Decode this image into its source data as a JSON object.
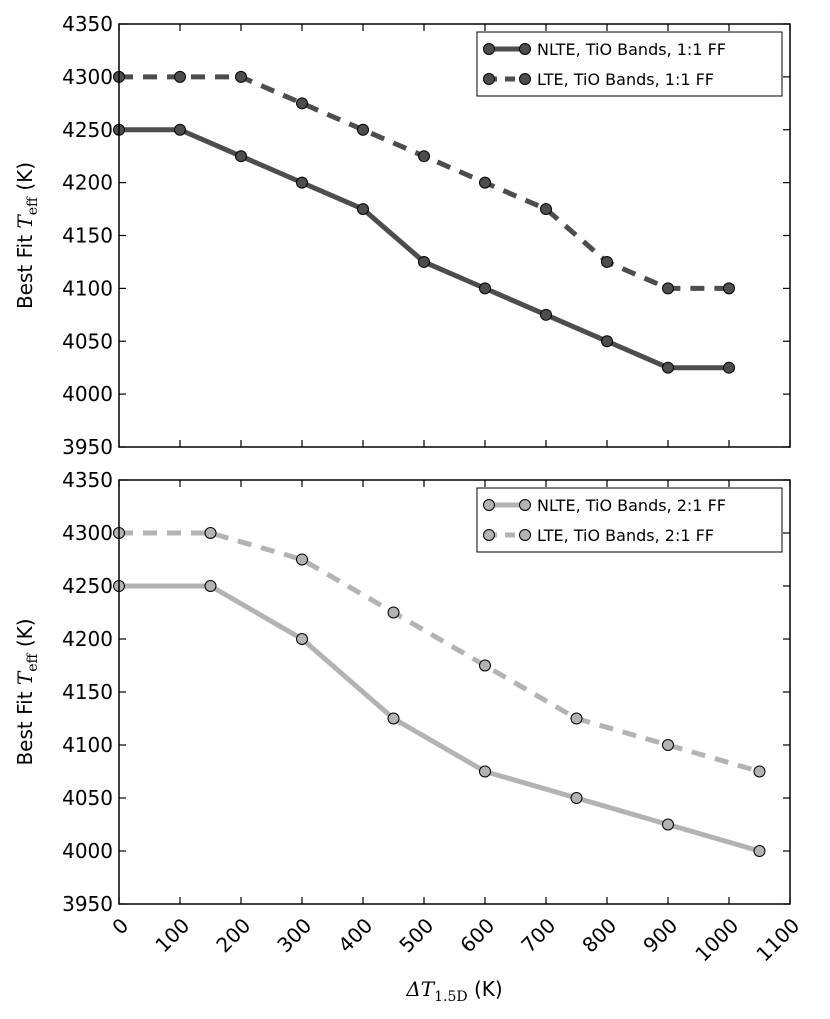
{
  "chart_data": [
    {
      "type": "line",
      "ylabel": "Best Fit T_eff (K)",
      "ylabel_prefix": "Best Fit ",
      "ylabel_sym": "T",
      "ylabel_sub": "eff",
      "ylabel_unit": " (K)",
      "xlim": [
        0,
        1100
      ],
      "ylim": [
        3950,
        4350
      ],
      "xticks": [
        0,
        100,
        200,
        300,
        400,
        500,
        600,
        700,
        800,
        900,
        1000,
        1100
      ],
      "yticks": [
        3950,
        4000,
        4050,
        4100,
        4150,
        4200,
        4250,
        4300,
        4350
      ],
      "xticklabels_visible": false,
      "legend_position": "top-right",
      "series": [
        {
          "name": "NLTE, TiO Bands, 1:1 FF",
          "style": "solid",
          "color": "#4d4d4d",
          "x": [
            0,
            100,
            200,
            300,
            400,
            500,
            600,
            700,
            800,
            900,
            1000
          ],
          "y": [
            4250,
            4250,
            4225,
            4200,
            4175,
            4125,
            4100,
            4075,
            4050,
            4025,
            4025
          ]
        },
        {
          "name": "LTE, TiO Bands, 1:1 FF",
          "style": "dashed",
          "color": "#4d4d4d",
          "x": [
            0,
            100,
            200,
            300,
            400,
            500,
            600,
            700,
            800,
            900,
            1000
          ],
          "y": [
            4300,
            4300,
            4300,
            4275,
            4250,
            4225,
            4200,
            4175,
            4125,
            4100,
            4100
          ]
        }
      ]
    },
    {
      "type": "line",
      "ylabel": "Best Fit T_eff (K)",
      "ylabel_prefix": "Best Fit ",
      "ylabel_sym": "T",
      "ylabel_sub": "eff",
      "ylabel_unit": " (K)",
      "xlabel": "ΔT_1.5D (K)",
      "xlabel_sym": "ΔT",
      "xlabel_sub": "1.5D",
      "xlabel_unit": " (K)",
      "xlim": [
        0,
        1100
      ],
      "ylim": [
        3950,
        4350
      ],
      "xticks": [
        0,
        100,
        200,
        300,
        400,
        500,
        600,
        700,
        800,
        900,
        1000,
        1100
      ],
      "yticks": [
        3950,
        4000,
        4050,
        4100,
        4150,
        4200,
        4250,
        4300,
        4350
      ],
      "xticklabels_visible": true,
      "legend_position": "top-right",
      "series": [
        {
          "name": "NLTE, TiO Bands, 2:1 FF",
          "style": "solid",
          "color": "#b3b3b3",
          "x": [
            0,
            150,
            300,
            450,
            600,
            750,
            900,
            1050
          ],
          "y": [
            4250,
            4250,
            4200,
            4125,
            4075,
            4050,
            4025,
            4000
          ]
        },
        {
          "name": "LTE, TiO Bands, 2:1 FF",
          "style": "dashed",
          "color": "#b3b3b3",
          "x": [
            0,
            150,
            300,
            450,
            600,
            750,
            900,
            1050
          ],
          "y": [
            4300,
            4300,
            4275,
            4225,
            4175,
            4125,
            4100,
            4075
          ]
        }
      ]
    }
  ]
}
